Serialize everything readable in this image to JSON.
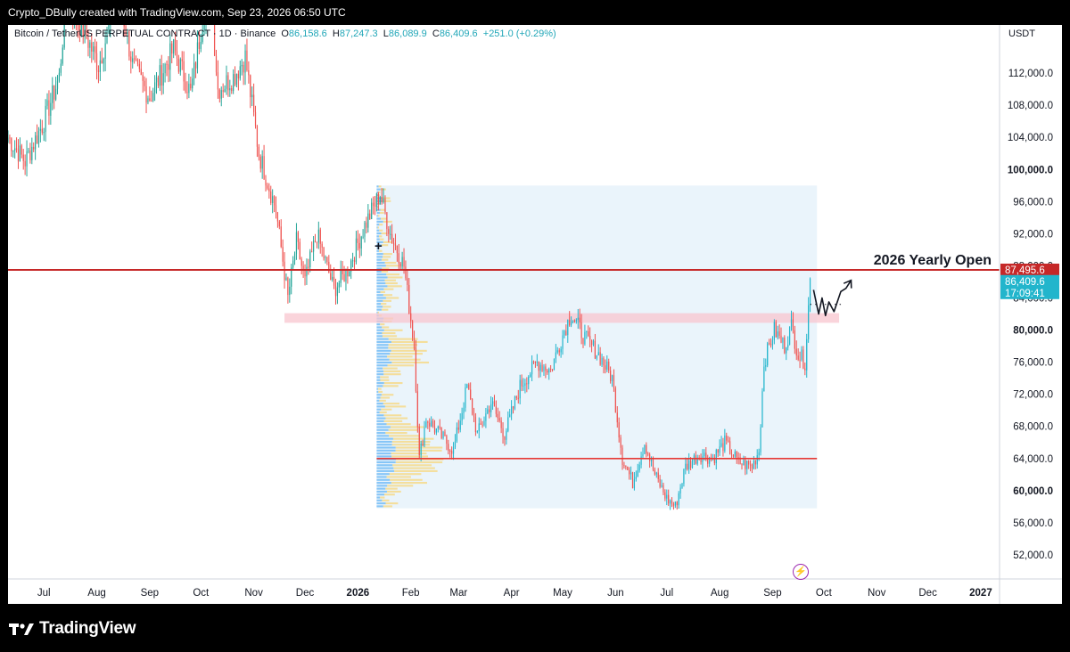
{
  "header": {
    "attribution": "Crypto_DBully created with TradingView.com, Sep 23, 2026 06:50 UTC"
  },
  "legend": {
    "symbol": "Bitcoin / TetherUS PERPETUAL CONTRACT · 1D · Binance",
    "o_label": "O",
    "o_value": "86,158.6",
    "h_label": "H",
    "h_value": "87,247.3",
    "l_label": "L",
    "l_value": "86,089.9",
    "c_label": "C",
    "c_value": "86,409.6",
    "change": "+251.0 (+0.29%)"
  },
  "currency": "USDT",
  "footer": {
    "brand": "TradingView"
  },
  "colors": {
    "up": "#26a69a",
    "up_bright": "#22b5cc",
    "down": "#ef5350",
    "level": "#c62828",
    "zone": "#f8c6cf",
    "box": "#eaf4fb",
    "profile_blue": "#64b5f6",
    "profile_yellow": "#f6d98a"
  },
  "chart_data": {
    "type": "candlestick",
    "interval": "1D",
    "y_axis": {
      "ylim": [
        49000,
        118000
      ],
      "ticks": [
        "112,000.0",
        "108,000.0",
        "104,000.0",
        "100,000.0",
        "96,000.0",
        "92,000.0",
        "88,000.0",
        "84,000.0",
        "80,000.0",
        "76,000.0",
        "72,000.0",
        "68,000.0",
        "64,000.0",
        "60,000.0",
        "56,000.0",
        "52,000.0"
      ],
      "tick_values": [
        112000,
        108000,
        104000,
        100000,
        96000,
        92000,
        88000,
        84000,
        80000,
        76000,
        72000,
        68000,
        64000,
        60000,
        56000,
        52000
      ],
      "bold_ticks": [
        "100,000.0",
        "80,000.0",
        "60,000.0"
      ]
    },
    "x_axis": {
      "ticks": [
        "Jul",
        "Aug",
        "Sep",
        "Oct",
        "Nov",
        "Dec",
        "2026",
        "Feb",
        "Mar",
        "Apr",
        "May",
        "Jun",
        "Jul",
        "Aug",
        "Sep",
        "Oct",
        "Nov",
        "Dec",
        "2027"
      ],
      "tick_dates": [
        "2025-07-01",
        "2025-08-01",
        "2025-09-01",
        "2025-10-01",
        "2025-11-01",
        "2025-12-01",
        "2026-01-01",
        "2026-02-01",
        "2026-03-01",
        "2026-04-01",
        "2026-05-01",
        "2026-06-01",
        "2026-07-01",
        "2026-08-01",
        "2026-09-01",
        "2026-10-01",
        "2026-11-01",
        "2026-12-01",
        "2027-01-01"
      ],
      "bold_ticks": [
        "2026",
        "2027"
      ],
      "xlim": [
        "2025-06-10",
        "2027-01-12"
      ]
    },
    "price_path": [
      [
        "2025-06-10",
        104000
      ],
      [
        "2025-06-20",
        101000
      ],
      [
        "2025-07-01",
        106000
      ],
      [
        "2025-07-10",
        111500
      ],
      [
        "2025-07-14",
        121000
      ],
      [
        "2025-07-25",
        117000
      ],
      [
        "2025-08-02",
        113000
      ],
      [
        "2025-08-14",
        122000
      ],
      [
        "2025-08-22",
        113000
      ],
      [
        "2025-09-01",
        109000
      ],
      [
        "2025-09-15",
        115000
      ],
      [
        "2025-09-25",
        109500
      ],
      [
        "2025-10-06",
        124000
      ],
      [
        "2025-10-11",
        110000
      ],
      [
        "2025-10-20",
        111500
      ],
      [
        "2025-10-27",
        114000
      ],
      [
        "2025-11-04",
        102000
      ],
      [
        "2025-11-14",
        95000
      ],
      [
        "2025-11-21",
        84000
      ],
      [
        "2025-11-26",
        91000
      ],
      [
        "2025-12-01",
        86000
      ],
      [
        "2025-12-08",
        92000
      ],
      [
        "2025-12-18",
        85000
      ],
      [
        "2025-12-26",
        87500
      ],
      [
        "2026-01-05",
        93000
      ],
      [
        "2026-01-14",
        97000
      ],
      [
        "2026-01-20",
        92000
      ],
      [
        "2026-01-28",
        88000
      ],
      [
        "2026-02-03",
        78000
      ],
      [
        "2026-02-06",
        64000
      ],
      [
        "2026-02-10",
        69000
      ],
      [
        "2026-02-18",
        67000
      ],
      [
        "2026-02-26",
        65000
      ],
      [
        "2026-03-06",
        73000
      ],
      [
        "2026-03-12",
        67000
      ],
      [
        "2026-03-20",
        71000
      ],
      [
        "2026-03-28",
        67000
      ],
      [
        "2026-04-06",
        73000
      ],
      [
        "2026-04-16",
        76000
      ],
      [
        "2026-04-24",
        75000
      ],
      [
        "2026-05-02",
        80000
      ],
      [
        "2026-05-06",
        82000
      ],
      [
        "2026-05-14",
        79000
      ],
      [
        "2026-05-22",
        77000
      ],
      [
        "2026-05-30",
        74000
      ],
      [
        "2026-06-05",
        64000
      ],
      [
        "2026-06-11",
        61000
      ],
      [
        "2026-06-18",
        66000
      ],
      [
        "2026-06-24",
        62000
      ],
      [
        "2026-07-01",
        59000
      ],
      [
        "2026-07-06",
        58000
      ],
      [
        "2026-07-12",
        63000
      ],
      [
        "2026-07-20",
        64500
      ],
      [
        "2026-07-28",
        64000
      ],
      [
        "2026-08-04",
        66000
      ],
      [
        "2026-08-12",
        63500
      ],
      [
        "2026-08-20",
        63000
      ],
      [
        "2026-08-24",
        65000
      ],
      [
        "2026-08-27",
        76000
      ],
      [
        "2026-09-02",
        80000
      ],
      [
        "2026-09-08",
        78000
      ],
      [
        "2026-09-12",
        80500
      ],
      [
        "2026-09-16",
        77000
      ],
      [
        "2026-09-20",
        76000
      ],
      [
        "2026-09-23",
        86409.6
      ]
    ],
    "levels": [
      {
        "name": "2026 Yearly Open",
        "value": 87495.6,
        "label": "2026 Yearly Open"
      },
      {
        "name": "volume-profile-poc",
        "value": 64000,
        "from": "2026-01-12",
        "to": "2026-09-27"
      }
    ],
    "zones": [
      {
        "name": "support-zone",
        "from_value": 80900,
        "to_value": 82100,
        "from": "2025-11-19",
        "to": "2026-10-10"
      }
    ],
    "volume_profile_range": {
      "from": "2026-01-12",
      "to": "2026-09-27",
      "low": 57800,
      "high": 98000
    },
    "price_labels": [
      {
        "text": "87,495.6",
        "value": 87495.6,
        "color": "#c62828"
      },
      {
        "text": "86,409.6",
        "value": 86409.6,
        "color": "#22b5cc"
      },
      {
        "text": "17:09:41",
        "value": 86409.6,
        "color": "#22b5cc"
      }
    ],
    "projection": [
      [
        "2026-09-25",
        85000
      ],
      [
        "2026-09-28",
        82000
      ],
      [
        "2026-09-30",
        84000
      ],
      [
        "2026-10-02",
        81800
      ],
      [
        "2026-10-04",
        83500
      ],
      [
        "2026-10-07",
        82300
      ],
      [
        "2026-10-11",
        84800
      ],
      [
        "2026-10-14",
        85200
      ],
      [
        "2026-10-17",
        86200
      ]
    ],
    "annotations": [
      {
        "name": "cross-marker",
        "date": "2026-01-13",
        "value": 90500,
        "text": "+"
      }
    ]
  }
}
